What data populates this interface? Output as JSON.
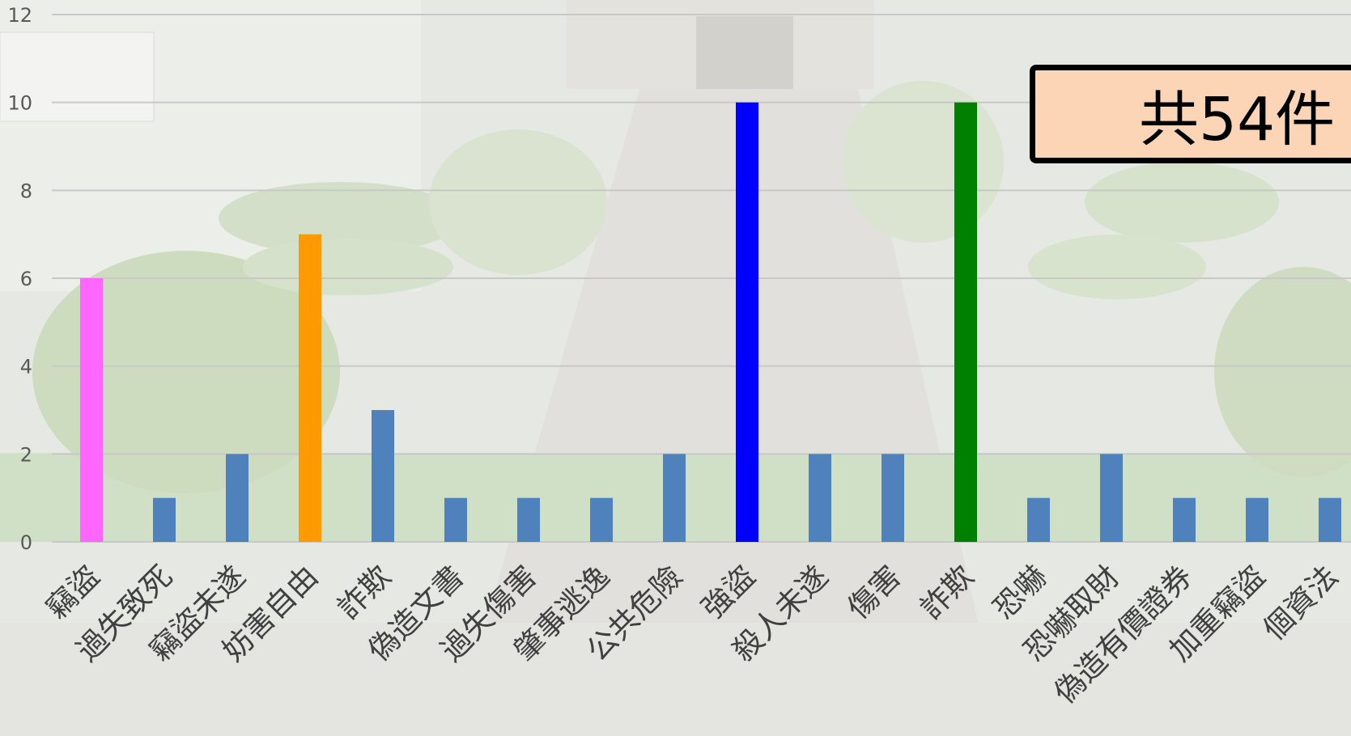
{
  "chart_data": {
    "type": "bar",
    "categories": [
      "竊盜",
      "過失致死",
      "竊盜未遂",
      "妨害自由",
      "詐欺",
      "偽造文書",
      "過失傷害",
      "肇事逃逸",
      "公共危險",
      "強盜",
      "殺人未遂",
      "傷害",
      "詐欺",
      "恐嚇",
      "恐嚇取財",
      "偽造有價證券",
      "加重竊盜",
      "個資法"
    ],
    "values": [
      6,
      1,
      2,
      7,
      3,
      1,
      1,
      1,
      2,
      10,
      2,
      2,
      10,
      1,
      2,
      1,
      1,
      1
    ],
    "bar_colors": [
      "#ff66ff",
      "#4f81bd",
      "#4f81bd",
      "#ff9900",
      "#4f81bd",
      "#4f81bd",
      "#4f81bd",
      "#4f81bd",
      "#4f81bd",
      "#0000ff",
      "#4f81bd",
      "#4f81bd",
      "#008000",
      "#4f81bd",
      "#4f81bd",
      "#4f81bd",
      "#4f81bd",
      "#4f81bd"
    ],
    "yticks": [
      0,
      2,
      4,
      6,
      8,
      10,
      12
    ],
    "ylim": [
      0,
      12
    ],
    "grid": true,
    "legend": "none",
    "title": "",
    "xlabel": "",
    "ylabel": ""
  },
  "annotation": {
    "total_text": "共54件"
  },
  "colors": {
    "gridline": "#c8c8c8",
    "default_bar": "#4f81bd",
    "annotation_fill": "#fbd5b5",
    "annotation_border": "#000000"
  }
}
